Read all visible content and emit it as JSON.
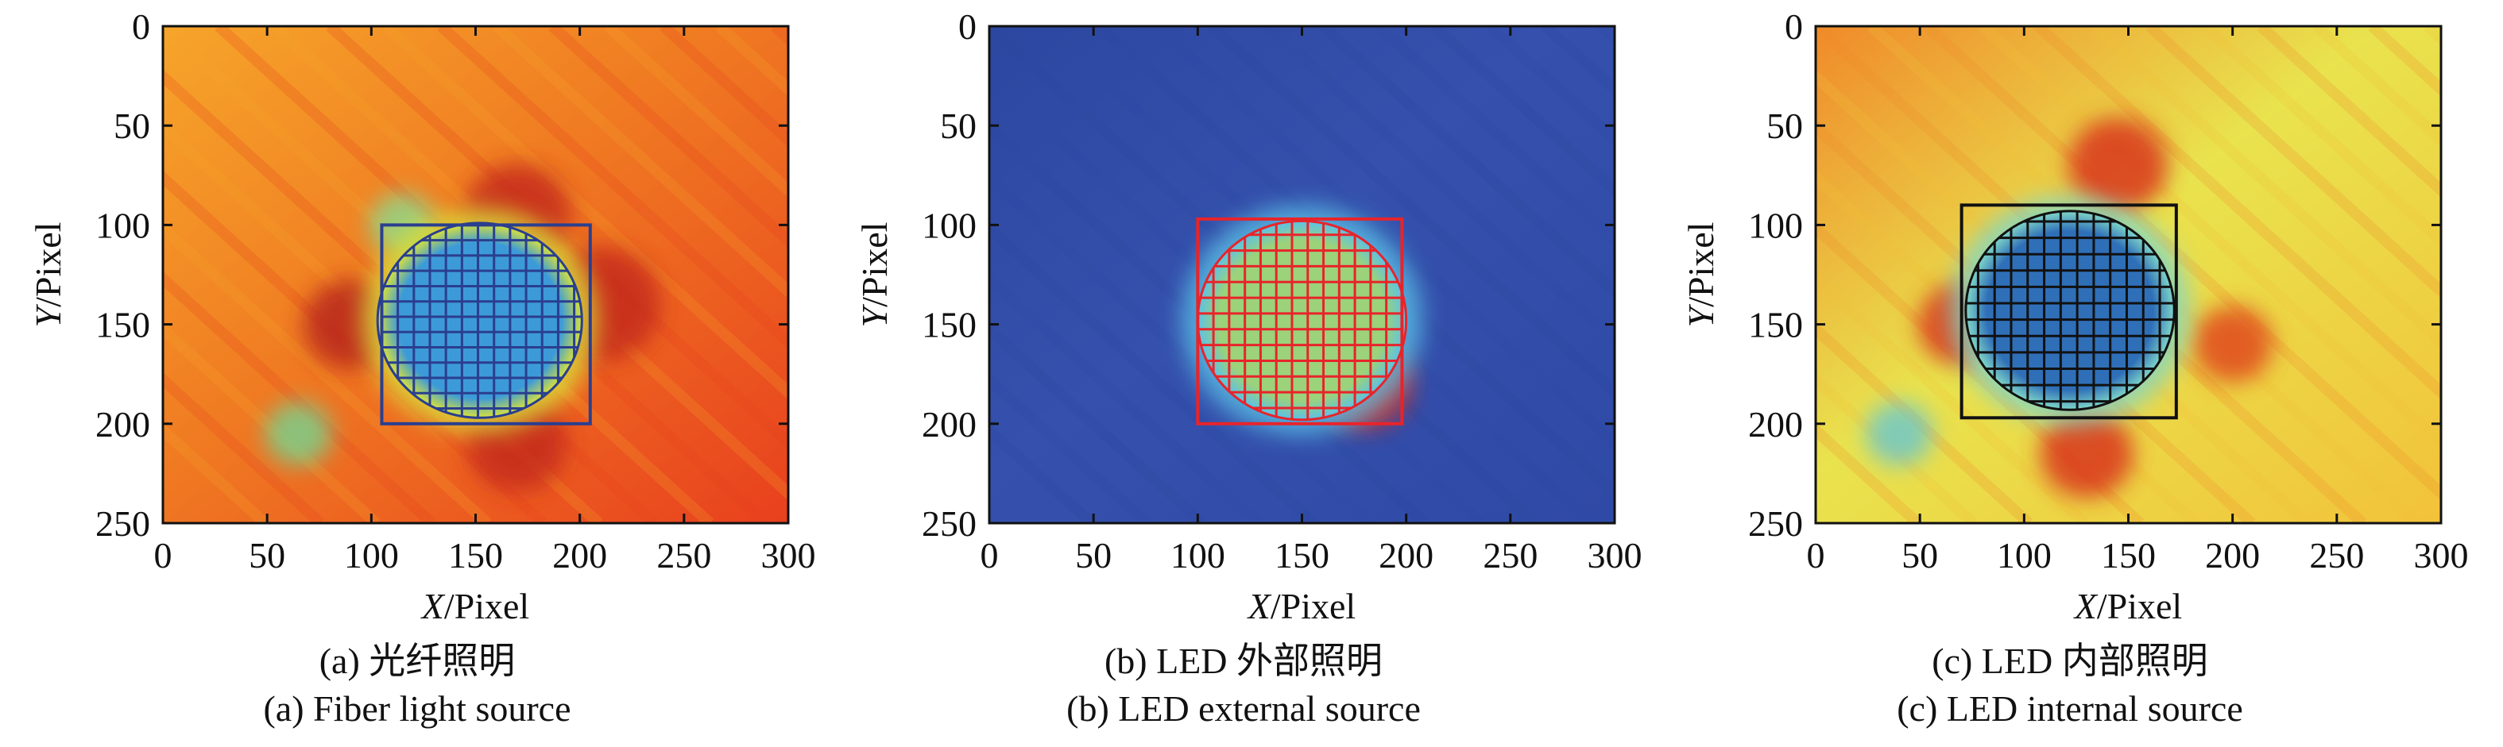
{
  "charts": [
    {
      "id": "a",
      "caption_cn": "(a) 光纤照明",
      "caption_en": "(a) Fiber light source",
      "xlabel_var": "X",
      "xlabel_unit": "/Pixel",
      "ylabel_var": "Y",
      "ylabel_unit": "/Pixel",
      "colors": {
        "bg1": "#e8401e",
        "bg2": "#f07a22",
        "bg3": "#f6a52a",
        "ring": "#d8e23a",
        "spot": "#3d9ad8",
        "grid": "#2a3f8f"
      }
    },
    {
      "id": "b",
      "caption_cn": "(b) LED 外部照明",
      "caption_en": "(b) LED external source",
      "xlabel_var": "X",
      "xlabel_unit": "/Pixel",
      "ylabel_var": "Y",
      "ylabel_unit": "/Pixel",
      "colors": {
        "bg1": "#2f4aa6",
        "bg2": "#3551ad",
        "bg3": "#2c47a0",
        "ring": "#5bc2e6",
        "spot": "#9bd27a",
        "grid": "#e8242a"
      }
    },
    {
      "id": "c",
      "caption_cn": "(c) LED 内部照明",
      "caption_en": "(c) LED internal source",
      "xlabel_var": "X",
      "xlabel_unit": "/Pixel",
      "ylabel_var": "Y",
      "ylabel_unit": "/Pixel",
      "colors": {
        "bg1": "#f2c23a",
        "bg2": "#e9e34e",
        "bg3": "#f08a2a",
        "ring": "#7fd6c8",
        "spot": "#2f6fb8",
        "grid": "#111111"
      }
    }
  ],
  "chart_data": [
    {
      "type": "heatmap",
      "xlim": [
        0,
        300
      ],
      "ylim": [
        0,
        250
      ],
      "xticks": [
        0,
        50,
        100,
        150,
        200,
        250,
        300
      ],
      "yticks": [
        0,
        50,
        100,
        150,
        200,
        250
      ],
      "y_inverted": true,
      "circle": {
        "cx": 152,
        "cy": 148,
        "r": 49
      },
      "box": {
        "x0": 105,
        "x1": 205,
        "y0": 100,
        "y1": 200
      },
      "grid_cells": 13,
      "blobs": [
        {
          "cx": 90,
          "cy": 150,
          "r": 14,
          "c": "#b8261a"
        },
        {
          "cx": 170,
          "cy": 95,
          "r": 16,
          "c": "#c52b1a"
        },
        {
          "cx": 210,
          "cy": 140,
          "r": 18,
          "c": "#c52b1a"
        },
        {
          "cx": 170,
          "cy": 210,
          "r": 15,
          "c": "#c52b1a"
        },
        {
          "cx": 65,
          "cy": 205,
          "r": 10,
          "c": "#7bcf8a"
        },
        {
          "cx": 115,
          "cy": 100,
          "r": 10,
          "c": "#8fd88a"
        }
      ]
    },
    {
      "type": "heatmap",
      "xlim": [
        0,
        300
      ],
      "ylim": [
        0,
        250
      ],
      "xticks": [
        0,
        50,
        100,
        150,
        200,
        250,
        300
      ],
      "yticks": [
        0,
        50,
        100,
        150,
        200,
        250
      ],
      "y_inverted": true,
      "circle": {
        "cx": 150,
        "cy": 148,
        "r": 50
      },
      "box": {
        "x0": 100,
        "x1": 198,
        "y0": 97,
        "y1": 200
      },
      "grid_cells": 13,
      "blobs": [
        {
          "cx": 180,
          "cy": 180,
          "r": 14,
          "c": "#d62a1e"
        }
      ]
    },
    {
      "type": "heatmap",
      "xlim": [
        0,
        300
      ],
      "ylim": [
        0,
        250
      ],
      "xticks": [
        0,
        50,
        100,
        150,
        200,
        250,
        300
      ],
      "yticks": [
        0,
        50,
        100,
        150,
        200,
        250
      ],
      "y_inverted": true,
      "circle": {
        "cx": 122,
        "cy": 143,
        "r": 50
      },
      "box": {
        "x0": 70,
        "x1": 173,
        "y0": 90,
        "y1": 197
      },
      "grid_cells": 13,
      "blobs": [
        {
          "cx": 70,
          "cy": 150,
          "r": 13,
          "c": "#d9361e"
        },
        {
          "cx": 145,
          "cy": 70,
          "r": 15,
          "c": "#d9361e"
        },
        {
          "cx": 200,
          "cy": 160,
          "r": 12,
          "c": "#e0481e"
        },
        {
          "cx": 130,
          "cy": 215,
          "r": 14,
          "c": "#d9361e"
        },
        {
          "cx": 40,
          "cy": 205,
          "r": 10,
          "c": "#6fc7c8"
        }
      ]
    }
  ]
}
